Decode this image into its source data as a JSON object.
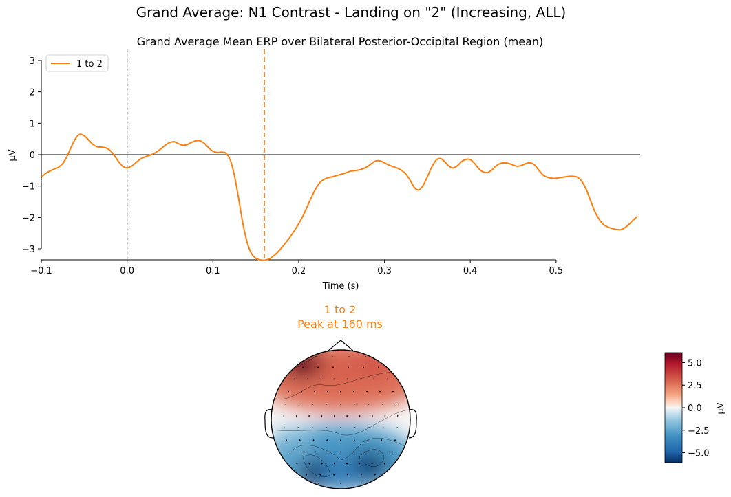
{
  "figure": {
    "suptitle": "Grand Average: N1 Contrast - Landing on \"2\" (Increasing, ALL)"
  },
  "chart_data": [
    {
      "type": "line",
      "title": "Grand Average Mean ERP over Bilateral Posterior-Occipital Region (mean)",
      "xlabel": "Time (s)",
      "ylabel": "µV",
      "xlim": [
        -0.1,
        0.598
      ],
      "ylim": [
        -3.35,
        3.35
      ],
      "x_spine_range": [
        -0.1,
        0.5
      ],
      "y_spine_range": [
        -3.0,
        3.0
      ],
      "xticks": [
        -0.1,
        0.0,
        0.1,
        0.2,
        0.3,
        0.4,
        0.5
      ],
      "xtick_labels": [
        "−0.1",
        "0.0",
        "0.1",
        "0.2",
        "0.3",
        "0.4",
        "0.5"
      ],
      "yticks": [
        3,
        2,
        1,
        0,
        -1,
        -2,
        -3
      ],
      "ytick_labels": [
        "3",
        "2",
        "1",
        "0",
        "−1",
        "−2",
        "−3"
      ],
      "zero_line": 0,
      "onset_line_x": 0.0,
      "peak_line_x": 0.16,
      "legend_position": "top-left",
      "series": [
        {
          "name": "1 to 2",
          "color": "#ff7f0e",
          "points": [
            [
              -0.1,
              -0.72
            ],
            [
              -0.095,
              -0.6
            ],
            [
              -0.09,
              -0.52
            ],
            [
              -0.085,
              -0.46
            ],
            [
              -0.08,
              -0.4
            ],
            [
              -0.075,
              -0.28
            ],
            [
              -0.07,
              -0.05
            ],
            [
              -0.065,
              0.25
            ],
            [
              -0.06,
              0.52
            ],
            [
              -0.055,
              0.65
            ],
            [
              -0.05,
              0.6
            ],
            [
              -0.045,
              0.47
            ],
            [
              -0.04,
              0.33
            ],
            [
              -0.035,
              0.25
            ],
            [
              -0.03,
              0.24
            ],
            [
              -0.025,
              0.22
            ],
            [
              -0.02,
              0.14
            ],
            [
              -0.015,
              -0.02
            ],
            [
              -0.01,
              -0.22
            ],
            [
              -0.005,
              -0.37
            ],
            [
              0.0,
              -0.42
            ],
            [
              0.005,
              -0.37
            ],
            [
              0.01,
              -0.26
            ],
            [
              0.015,
              -0.15
            ],
            [
              0.02,
              -0.08
            ],
            [
              0.025,
              -0.03
            ],
            [
              0.03,
              0.02
            ],
            [
              0.035,
              0.1
            ],
            [
              0.04,
              0.2
            ],
            [
              0.045,
              0.31
            ],
            [
              0.05,
              0.39
            ],
            [
              0.055,
              0.41
            ],
            [
              0.06,
              0.35
            ],
            [
              0.065,
              0.3
            ],
            [
              0.07,
              0.32
            ],
            [
              0.075,
              0.39
            ],
            [
              0.08,
              0.44
            ],
            [
              0.085,
              0.44
            ],
            [
              0.09,
              0.36
            ],
            [
              0.095,
              0.22
            ],
            [
              0.1,
              0.11
            ],
            [
              0.105,
              0.07
            ],
            [
              0.11,
              0.08
            ],
            [
              0.115,
              0.05
            ],
            [
              0.12,
              -0.15
            ],
            [
              0.125,
              -0.65
            ],
            [
              0.13,
              -1.4
            ],
            [
              0.135,
              -2.2
            ],
            [
              0.14,
              -2.8
            ],
            [
              0.145,
              -3.15
            ],
            [
              0.15,
              -3.3
            ],
            [
              0.155,
              -3.35
            ],
            [
              0.16,
              -3.36
            ],
            [
              0.165,
              -3.33
            ],
            [
              0.17,
              -3.24
            ],
            [
              0.175,
              -3.12
            ],
            [
              0.18,
              -2.97
            ],
            [
              0.185,
              -2.8
            ],
            [
              0.19,
              -2.62
            ],
            [
              0.195,
              -2.42
            ],
            [
              0.2,
              -2.2
            ],
            [
              0.205,
              -1.95
            ],
            [
              0.21,
              -1.65
            ],
            [
              0.215,
              -1.35
            ],
            [
              0.22,
              -1.08
            ],
            [
              0.225,
              -0.88
            ],
            [
              0.23,
              -0.78
            ],
            [
              0.235,
              -0.73
            ],
            [
              0.24,
              -0.7
            ],
            [
              0.245,
              -0.66
            ],
            [
              0.25,
              -0.62
            ],
            [
              0.255,
              -0.58
            ],
            [
              0.26,
              -0.53
            ],
            [
              0.265,
              -0.51
            ],
            [
              0.27,
              -0.49
            ],
            [
              0.275,
              -0.45
            ],
            [
              0.28,
              -0.38
            ],
            [
              0.285,
              -0.28
            ],
            [
              0.29,
              -0.2
            ],
            [
              0.295,
              -0.2
            ],
            [
              0.3,
              -0.26
            ],
            [
              0.305,
              -0.33
            ],
            [
              0.31,
              -0.38
            ],
            [
              0.315,
              -0.43
            ],
            [
              0.32,
              -0.5
            ],
            [
              0.325,
              -0.62
            ],
            [
              0.33,
              -0.82
            ],
            [
              0.335,
              -1.05
            ],
            [
              0.34,
              -1.12
            ],
            [
              0.345,
              -0.98
            ],
            [
              0.35,
              -0.7
            ],
            [
              0.355,
              -0.4
            ],
            [
              0.36,
              -0.18
            ],
            [
              0.365,
              -0.12
            ],
            [
              0.37,
              -0.22
            ],
            [
              0.375,
              -0.36
            ],
            [
              0.38,
              -0.42
            ],
            [
              0.385,
              -0.35
            ],
            [
              0.39,
              -0.22
            ],
            [
              0.395,
              -0.15
            ],
            [
              0.4,
              -0.16
            ],
            [
              0.405,
              -0.28
            ],
            [
              0.41,
              -0.45
            ],
            [
              0.415,
              -0.55
            ],
            [
              0.42,
              -0.57
            ],
            [
              0.425,
              -0.49
            ],
            [
              0.43,
              -0.36
            ],
            [
              0.435,
              -0.28
            ],
            [
              0.44,
              -0.26
            ],
            [
              0.445,
              -0.28
            ],
            [
              0.45,
              -0.33
            ],
            [
              0.455,
              -0.37
            ],
            [
              0.46,
              -0.34
            ],
            [
              0.465,
              -0.28
            ],
            [
              0.47,
              -0.26
            ],
            [
              0.475,
              -0.33
            ],
            [
              0.48,
              -0.5
            ],
            [
              0.485,
              -0.65
            ],
            [
              0.49,
              -0.72
            ],
            [
              0.495,
              -0.75
            ],
            [
              0.5,
              -0.75
            ],
            [
              0.505,
              -0.73
            ],
            [
              0.51,
              -0.71
            ],
            [
              0.515,
              -0.69
            ],
            [
              0.52,
              -0.69
            ],
            [
              0.525,
              -0.72
            ],
            [
              0.53,
              -0.85
            ],
            [
              0.535,
              -1.1
            ],
            [
              0.54,
              -1.45
            ],
            [
              0.545,
              -1.8
            ],
            [
              0.55,
              -2.05
            ],
            [
              0.555,
              -2.22
            ],
            [
              0.56,
              -2.3
            ],
            [
              0.565,
              -2.35
            ],
            [
              0.57,
              -2.38
            ],
            [
              0.575,
              -2.39
            ],
            [
              0.58,
              -2.33
            ],
            [
              0.585,
              -2.22
            ],
            [
              0.59,
              -2.08
            ],
            [
              0.595,
              -1.96
            ]
          ]
        }
      ]
    },
    {
      "type": "heatmap",
      "subtype": "topomap",
      "title_line1": "1 to 2",
      "title_line2": "Peak at 160 ms",
      "title_color": "#ff7f0e",
      "colorbar_label": "µV",
      "colorbar_range": [
        -6.1,
        6.1
      ],
      "colorbar_ticks": [
        5.0,
        2.5,
        0.0,
        -2.5,
        -5.0
      ],
      "colorbar_tick_labels": [
        "5.0",
        "2.5",
        "0.0",
        "−2.5",
        "−5.0"
      ],
      "colormap": "RdBu_r",
      "regions": [
        {
          "name": "left-frontal-max",
          "value": 6.0,
          "u": -0.55,
          "v": -0.8
        },
        {
          "name": "right-frontal-pos",
          "value": 3.3,
          "u": 0.45,
          "v": -0.8
        },
        {
          "name": "mid-frontal-pos",
          "value": 3.0,
          "u": 0.0,
          "v": -0.7
        },
        {
          "name": "left-parieto-occipital-neg",
          "value": -6.0,
          "u": -0.32,
          "v": 0.78
        },
        {
          "name": "right-parieto-occipital-neg",
          "value": -5.8,
          "u": 0.38,
          "v": 0.68
        },
        {
          "name": "mid-occipital-neg",
          "value": -4.0,
          "u": 0.0,
          "v": 0.8
        },
        {
          "name": "left-temporal-neg",
          "value": -2.0,
          "u": -0.7,
          "v": 0.35
        }
      ]
    }
  ]
}
